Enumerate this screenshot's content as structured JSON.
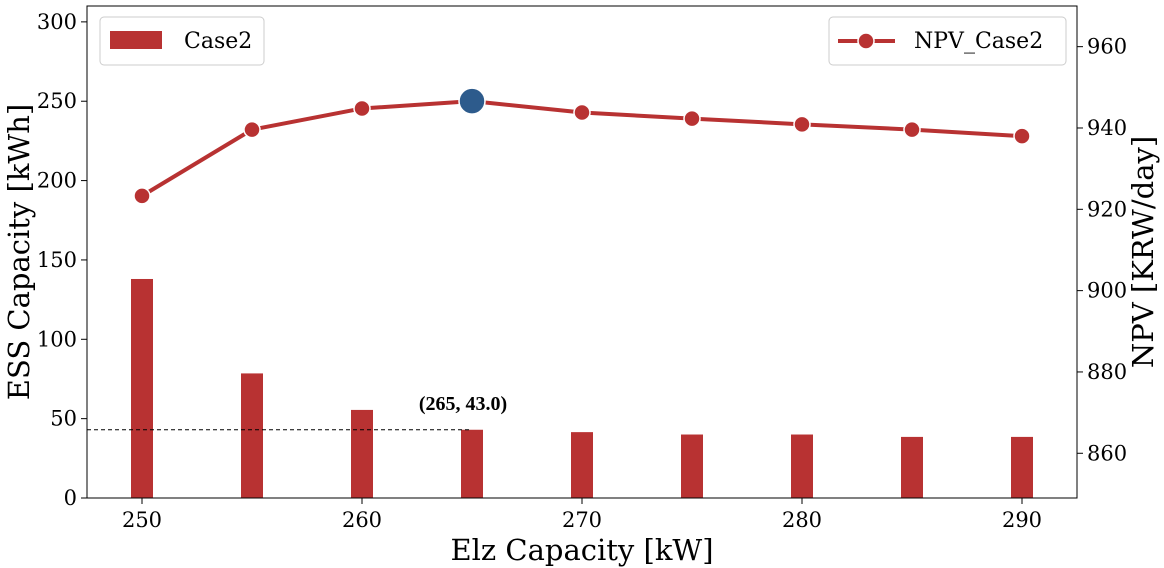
{
  "chart_data": {
    "type": "bar",
    "x": [
      250,
      255,
      260,
      265,
      270,
      275,
      280,
      285,
      290
    ],
    "xlabel": "Elz Capacity [kW]",
    "xlim": [
      247.5,
      292.5
    ],
    "xticks": [
      250,
      260,
      270,
      280,
      290
    ],
    "ylabel_left": "ESS Capacity [kWh]",
    "ylim_left": [
      0,
      310
    ],
    "yticks_left": [
      0,
      50,
      100,
      150,
      200,
      250,
      300
    ],
    "ylabel_right": "NPV [KRW/day]",
    "ylim_right": [
      849,
      970
    ],
    "yticks_right": [
      860,
      880,
      900,
      920,
      940,
      960
    ],
    "series": [
      {
        "name": "Case2",
        "kind": "bar",
        "axis": "left",
        "color": "#b83232",
        "values": [
          138,
          78.5,
          55.5,
          43.0,
          41.5,
          40,
          40,
          38.5,
          38.5
        ]
      },
      {
        "name": "NPV_Case2",
        "kind": "line",
        "axis": "right",
        "color": "#b83232",
        "values": [
          923.3,
          939.6,
          944.8,
          946.6,
          943.8,
          942.3,
          940.9,
          939.6,
          938.0
        ]
      }
    ],
    "highlight": {
      "x": 265,
      "npv": 946.6,
      "color": "#2d5b8c",
      "label": "(265, 43.0)",
      "ess": 43.0
    },
    "legend_left": {
      "placement": "top-left",
      "label": "Case2"
    },
    "legend_right": {
      "placement": "top-right",
      "label": "NPV_Case2"
    },
    "grid": false
  }
}
